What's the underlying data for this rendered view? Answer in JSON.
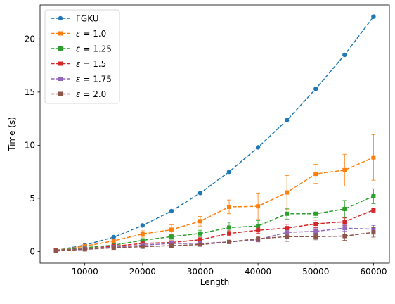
{
  "chart_data": {
    "type": "line",
    "xlabel": "Length",
    "ylabel": "Time (s)",
    "xlim": [
      2250,
      62750
    ],
    "ylim": [
      -1.1,
      23.2
    ],
    "xticks": [
      10000,
      20000,
      30000,
      40000,
      50000,
      60000
    ],
    "xtick_labels": [
      "10000",
      "20000",
      "30000",
      "40000",
      "50000",
      "60000"
    ],
    "yticks": [
      0,
      5,
      10,
      15,
      20
    ],
    "ytick_labels": [
      "0",
      "5",
      "10",
      "15",
      "20"
    ],
    "legend_position": "top-left",
    "x": [
      5000,
      10000,
      15000,
      20000,
      25000,
      30000,
      35000,
      40000,
      45000,
      50000,
      55000,
      60000
    ],
    "series": [
      {
        "name": "FGKU",
        "name_prefix": "",
        "name_value": "",
        "marker": "circle",
        "color": "#1f77b4",
        "values": [
          0.1,
          0.6,
          1.35,
          2.45,
          3.8,
          5.5,
          7.5,
          9.8,
          12.35,
          15.3,
          18.5,
          22.1
        ],
        "errors": [
          0,
          0,
          0,
          0,
          0,
          0,
          0,
          0,
          0,
          0,
          0,
          0
        ]
      },
      {
        "name": "ε = 1.0",
        "name_prefix": "ε",
        "name_value": "1.0",
        "marker": "square",
        "color": "#ff7f0e",
        "values": [
          0.1,
          0.5,
          1.0,
          1.65,
          2.05,
          2.85,
          4.2,
          4.25,
          5.55,
          7.3,
          7.65,
          8.85
        ],
        "errors": [
          0.05,
          0.1,
          0.15,
          0.3,
          0.45,
          0.45,
          0.65,
          1.25,
          1.6,
          0.9,
          1.5,
          2.15
        ]
      },
      {
        "name": "ε = 1.25",
        "name_prefix": "ε",
        "name_value": "1.25",
        "marker": "square",
        "color": "#2ca02c",
        "values": [
          0.1,
          0.35,
          0.6,
          1.05,
          1.4,
          1.7,
          2.25,
          2.4,
          3.55,
          3.55,
          4.0,
          5.2
        ],
        "errors": [
          0.05,
          0.05,
          0.1,
          0.15,
          0.25,
          0.3,
          0.5,
          0.5,
          0.5,
          0.35,
          0.8,
          0.7
        ]
      },
      {
        "name": "ε = 1.5",
        "name_prefix": "ε",
        "name_value": "1.5",
        "marker": "square",
        "color": "#d62728",
        "values": [
          0.1,
          0.25,
          0.5,
          0.75,
          0.85,
          1.1,
          1.7,
          2.0,
          2.2,
          2.6,
          2.8,
          3.9
        ],
        "errors": [
          0.05,
          0.05,
          0.05,
          0.1,
          0.15,
          0.2,
          0.25,
          0.3,
          0.35,
          0.35,
          0.35,
          0.2
        ]
      },
      {
        "name": "ε = 1.75",
        "name_prefix": "ε",
        "name_value": "1.75",
        "marker": "square",
        "color": "#9467bd",
        "values": [
          0.05,
          0.25,
          0.4,
          0.6,
          0.75,
          0.75,
          0.9,
          1.1,
          1.8,
          1.9,
          2.2,
          2.1
        ],
        "errors": [
          0.05,
          0.05,
          0.05,
          0.1,
          0.1,
          0.15,
          0.15,
          0.2,
          0.3,
          0.3,
          0.3,
          0.35
        ]
      },
      {
        "name": "ε = 2.0",
        "name_prefix": "ε",
        "name_value": "2.0",
        "marker": "square",
        "color": "#8c564b",
        "values": [
          0.05,
          0.2,
          0.35,
          0.45,
          0.55,
          0.65,
          0.9,
          1.2,
          1.4,
          1.4,
          1.45,
          1.8
        ],
        "errors": [
          0.05,
          0.05,
          0.05,
          0.05,
          0.1,
          0.1,
          0.1,
          0.25,
          0.45,
          0.3,
          0.4,
          0.45
        ]
      }
    ]
  }
}
